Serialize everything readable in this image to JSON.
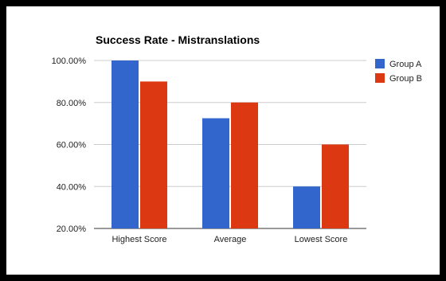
{
  "chart_data": {
    "type": "bar",
    "title": "Success Rate - Mistranslations",
    "categories": [
      "Highest Score",
      "Average",
      "Lowest Score"
    ],
    "series": [
      {
        "name": "Group A",
        "color": "#3366cc",
        "values": [
          100,
          72.5,
          40
        ]
      },
      {
        "name": "Group B",
        "color": "#dc3912",
        "values": [
          90,
          80,
          60
        ]
      }
    ],
    "y_ticks": [
      "100.00%",
      "80.00%",
      "60.00%",
      "40.00%",
      "20.00%"
    ],
    "y_tick_values": [
      100,
      80,
      60,
      40,
      20
    ],
    "ylim": [
      20,
      100
    ],
    "grid": true,
    "legend": "right"
  },
  "colors": {
    "frame": "#000000",
    "gridline": "#cccccc",
    "axis": "#333333",
    "text": "#222222"
  }
}
